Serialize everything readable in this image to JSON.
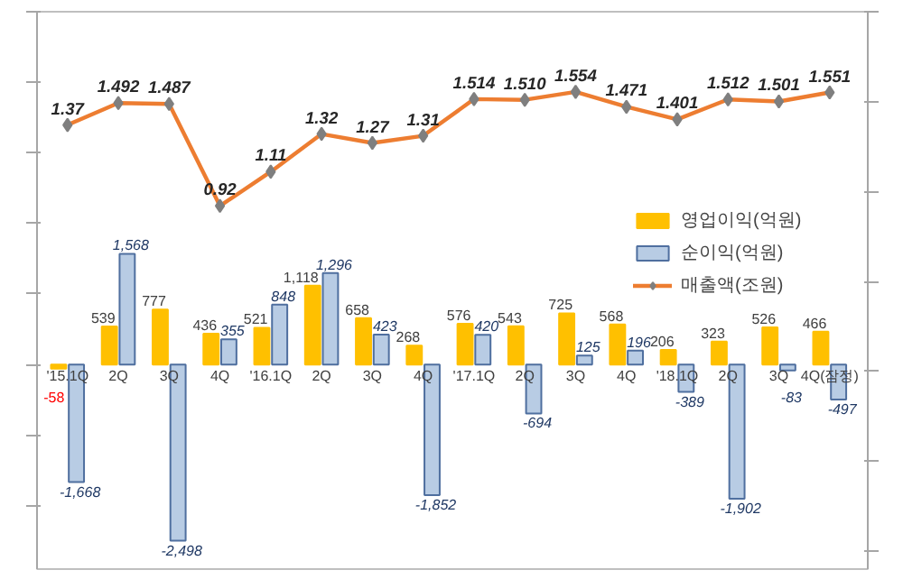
{
  "chart_data": {
    "type": "bar",
    "categories": [
      "'15.1Q",
      "2Q",
      "3Q",
      "4Q",
      "'16.1Q",
      "2Q",
      "3Q",
      "4Q",
      "'17.1Q",
      "2Q",
      "3Q",
      "4Q",
      "'18.1Q",
      "2Q",
      "3Q",
      "4Q(잠정)"
    ],
    "series": [
      {
        "name": "영업이익(억원)",
        "color": "#ffc000",
        "values": [
          -58,
          539,
          777,
          436,
          521,
          1118,
          658,
          268,
          576,
          543,
          725,
          568,
          206,
          323,
          526,
          466
        ],
        "value_labels": [
          "-58",
          "539",
          "777",
          "436",
          "521",
          "1,118",
          "658",
          "268",
          "576",
          "543",
          "725",
          "568",
          "206",
          "323",
          "526",
          "466"
        ]
      },
      {
        "name": "순이익(억원)",
        "color": "#b8cce4",
        "values": [
          -1668,
          1568,
          -2498,
          355,
          848,
          1296,
          423,
          -1852,
          420,
          -694,
          125,
          196,
          -389,
          -1902,
          -83,
          -497
        ],
        "value_labels": [
          "-1,668",
          "1,568",
          "-2,498",
          "355",
          "848",
          "1,296",
          "423",
          "-1,852",
          "420",
          "-694",
          "125",
          "196",
          "-389",
          "-1,902",
          "-83",
          "-497"
        ]
      },
      {
        "name": "매출액(조원)",
        "type": "line",
        "axis": "y2",
        "color": "#ed7d31",
        "values": [
          1.37,
          1.492,
          1.487,
          0.92,
          1.11,
          1.32,
          1.27,
          1.31,
          1.514,
          1.51,
          1.554,
          1.471,
          1.401,
          1.512,
          1.501,
          1.551
        ],
        "value_labels": [
          "1.37",
          "1.492",
          "1.487",
          "0.92",
          "1.11",
          "1.32",
          "1.27",
          "1.31",
          "1.514",
          "1.510",
          "1.554",
          "1.471",
          "1.401",
          "1.512",
          "1.501",
          "1.551"
        ]
      }
    ],
    "ylim": [
      -2900,
      5000
    ],
    "y2lim": [
      -1.1,
      2
    ],
    "legend": "right",
    "marker": "diamond",
    "grid": false,
    "tick_labels": false
  }
}
